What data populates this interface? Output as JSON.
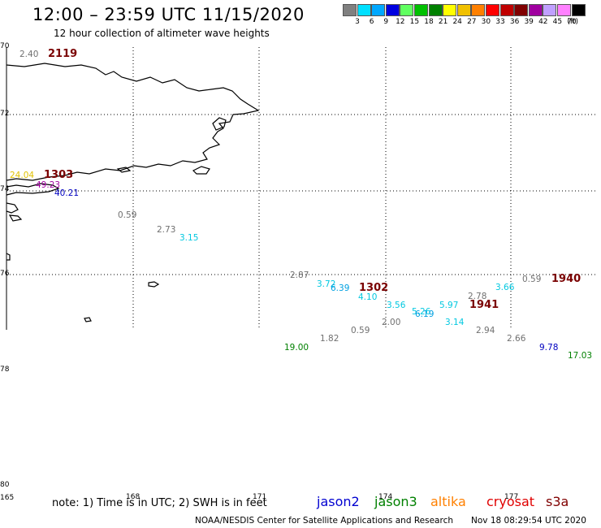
{
  "header": {
    "title": "12:00 – 23:59 UTC 11/15/2020",
    "subtitle": "12 hour collection of altimeter wave heights"
  },
  "legend_scale": {
    "unit": "(ft)",
    "bins": [
      {
        "label": "3",
        "color": "#808080"
      },
      {
        "label": "6",
        "color": "#00e0ff"
      },
      {
        "label": "9",
        "color": "#00a8ff"
      },
      {
        "label": "12",
        "color": "#0000e0"
      },
      {
        "label": "15",
        "color": "#60ff60"
      },
      {
        "label": "18",
        "color": "#00c000"
      },
      {
        "label": "21",
        "color": "#008000"
      },
      {
        "label": "24",
        "color": "#ffff00"
      },
      {
        "label": "27",
        "color": "#f0c000"
      },
      {
        "label": "30",
        "color": "#ff8000"
      },
      {
        "label": "33",
        "color": "#ff0000"
      },
      {
        "label": "36",
        "color": "#c00000"
      },
      {
        "label": "39",
        "color": "#800000"
      },
      {
        "label": "42",
        "color": "#a000a0"
      },
      {
        "label": "45",
        "color": "#c0a0ff"
      },
      {
        "label": "70",
        "color": "#ff80ff"
      },
      {
        "label": "",
        "color": "#000000"
      }
    ]
  },
  "axes": {
    "lat_labels": [
      "70",
      "72",
      "74",
      "76",
      "78",
      "80"
    ],
    "lon_labels": [
      "165",
      "168",
      "171",
      "174",
      "177"
    ]
  },
  "wave_heights": [
    {
      "text": "2.40",
      "color": "#707070"
    },
    {
      "text": "24.04",
      "color": "#e0c000"
    },
    {
      "text": "49.23",
      "color": "#a000a0"
    },
    {
      "text": "40.21",
      "color": "#0000c0"
    },
    {
      "text": "0.59",
      "color": "#707070"
    },
    {
      "text": "2.73",
      "color": "#707070"
    },
    {
      "text": "3.15",
      "color": "#00c8e0"
    },
    {
      "text": "2.87",
      "color": "#707070"
    },
    {
      "text": "3.72",
      "color": "#00c8e0"
    },
    {
      "text": "6.39",
      "color": "#00a0e0"
    },
    {
      "text": "4.10",
      "color": "#00c8e0"
    },
    {
      "text": "3.56",
      "color": "#00c8e0"
    },
    {
      "text": "5.26",
      "color": "#00c8e0"
    },
    {
      "text": "6.19",
      "color": "#00a0e0"
    },
    {
      "text": "5.97",
      "color": "#00c8e0"
    },
    {
      "text": "3.14",
      "color": "#00c8e0"
    },
    {
      "text": "2.00",
      "color": "#707070"
    },
    {
      "text": "0.59",
      "color": "#707070"
    },
    {
      "text": "1.82",
      "color": "#707070"
    },
    {
      "text": "19.00",
      "color": "#008000"
    },
    {
      "text": "2.78",
      "color": "#707070"
    },
    {
      "text": "3.66",
      "color": "#00c8e0"
    },
    {
      "text": "0.59",
      "color": "#707070"
    },
    {
      "text": "2.94",
      "color": "#707070"
    },
    {
      "text": "2.66",
      "color": "#707070"
    },
    {
      "text": "9.78",
      "color": "#0000c0"
    },
    {
      "text": "17.03",
      "color": "#008000"
    }
  ],
  "pass_times": [
    "2119",
    "1303",
    "1302",
    "1941",
    "1940"
  ],
  "footer": {
    "note": "note:  1) Time is in UTC;  2) SWH is in feet",
    "satellites": [
      {
        "name": "jason2",
        "color": "#0000d0"
      },
      {
        "name": "jason3",
        "color": "#008000"
      },
      {
        "name": "altika",
        "color": "#ff8000"
      },
      {
        "name": "cryosat",
        "color": "#e00000"
      },
      {
        "name": "s3a",
        "color": "#800000"
      }
    ],
    "credit": "NOAA/NESDIS Center for Satellite Applications and Research",
    "timestamp": "Nov 18 08:29:54 UTC 2020"
  }
}
